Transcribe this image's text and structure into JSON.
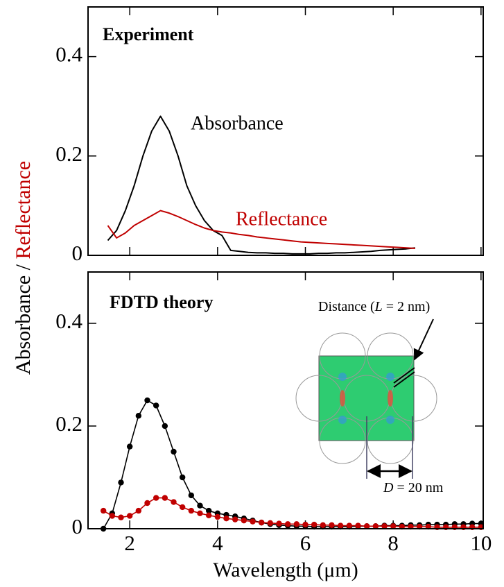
{
  "chart_data": [
    {
      "type": "line",
      "title": "Experiment",
      "x": [
        1.5,
        1.7,
        1.9,
        2.1,
        2.3,
        2.5,
        2.7,
        2.9,
        3.1,
        3.3,
        3.5,
        3.7,
        3.9,
        4.1,
        4.3,
        4.5,
        4.7,
        4.9,
        5.1,
        5.3,
        5.5,
        5.7,
        5.9,
        6.1,
        6.3,
        6.5,
        6.7,
        6.9,
        7.1,
        7.3,
        7.5,
        7.7,
        7.9,
        8.1,
        8.3,
        8.5
      ],
      "series": [
        {
          "name": "Absorbance",
          "color": "#000000",
          "values": [
            0.03,
            0.05,
            0.09,
            0.14,
            0.2,
            0.25,
            0.28,
            0.25,
            0.2,
            0.14,
            0.1,
            0.07,
            0.05,
            0.04,
            0.01,
            0.008,
            0.006,
            0.005,
            0.005,
            0.004,
            0.004,
            0.003,
            0.003,
            0.003,
            0.004,
            0.004,
            0.005,
            0.005,
            0.006,
            0.007,
            0.008,
            0.01,
            0.011,
            0.012,
            0.013,
            0.015
          ]
        },
        {
          "name": "Reflectance",
          "color": "#c00000",
          "values": [
            0.06,
            0.035,
            0.045,
            0.06,
            0.07,
            0.08,
            0.09,
            0.085,
            0.078,
            0.07,
            0.062,
            0.055,
            0.05,
            0.047,
            0.045,
            0.042,
            0.04,
            0.037,
            0.035,
            0.033,
            0.031,
            0.029,
            0.027,
            0.026,
            0.025,
            0.024,
            0.023,
            0.022,
            0.021,
            0.02,
            0.019,
            0.018,
            0.017,
            0.016,
            0.015,
            0.014
          ]
        }
      ],
      "markers": false,
      "xlim": [
        1.05,
        10.05
      ],
      "xticks": [
        2,
        4,
        6,
        8,
        10
      ],
      "ylim": [
        0,
        0.5
      ],
      "yticks": [
        0,
        0.2,
        0.4
      ]
    },
    {
      "type": "line",
      "title": "FDTD theory",
      "x": [
        1.4,
        1.6,
        1.8,
        2.0,
        2.2,
        2.4,
        2.6,
        2.8,
        3.0,
        3.2,
        3.4,
        3.6,
        3.8,
        4.0,
        4.2,
        4.4,
        4.6,
        4.8,
        5.0,
        5.2,
        5.4,
        5.6,
        5.8,
        6.0,
        6.2,
        6.4,
        6.6,
        6.8,
        7.0,
        7.2,
        7.4,
        7.6,
        7.8,
        8.0,
        8.2,
        8.4,
        8.6,
        8.8,
        9.0,
        9.2,
        9.4,
        9.6,
        9.8,
        10.0
      ],
      "series": [
        {
          "color": "#000000",
          "values": [
            0.0,
            0.03,
            0.09,
            0.16,
            0.22,
            0.25,
            0.24,
            0.2,
            0.15,
            0.1,
            0.065,
            0.045,
            0.035,
            0.03,
            0.027,
            0.024,
            0.02,
            0.016,
            0.012,
            0.009,
            0.007,
            0.006,
            0.005,
            0.005,
            0.004,
            0.004,
            0.004,
            0.004,
            0.004,
            0.005,
            0.005,
            0.005,
            0.006,
            0.006,
            0.006,
            0.007,
            0.007,
            0.008,
            0.008,
            0.008,
            0.009,
            0.009,
            0.01,
            0.01
          ]
        },
        {
          "color": "#c00000",
          "values": [
            0.035,
            0.025,
            0.022,
            0.025,
            0.035,
            0.05,
            0.06,
            0.06,
            0.052,
            0.042,
            0.035,
            0.03,
            0.026,
            0.023,
            0.02,
            0.018,
            0.016,
            0.014,
            0.012,
            0.011,
            0.01,
            0.009,
            0.009,
            0.008,
            0.008,
            0.007,
            0.007,
            0.006,
            0.006,
            0.006,
            0.005,
            0.005,
            0.005,
            0.005,
            0.004,
            0.004,
            0.004,
            0.004,
            0.003,
            0.003,
            0.003,
            0.003,
            0.003,
            0.003
          ]
        }
      ],
      "markers": true,
      "xlim": [
        1.05,
        10.05
      ],
      "xticks": [
        2,
        4,
        6,
        8,
        10
      ],
      "ylim": [
        0,
        0.5
      ],
      "yticks": [
        0,
        0.2,
        0.4
      ],
      "xlabel": "Wavelength (μm)",
      "inset": {
        "distance_label": [
          "Distance (",
          "L",
          " = 2 nm)"
        ],
        "d_label": [
          "D",
          " = 20 nm"
        ]
      }
    }
  ],
  "ylabel": [
    {
      "text": "Absorbance / ",
      "color": "#000000"
    },
    {
      "text": "Reflectance",
      "color": "#c00000"
    }
  ]
}
